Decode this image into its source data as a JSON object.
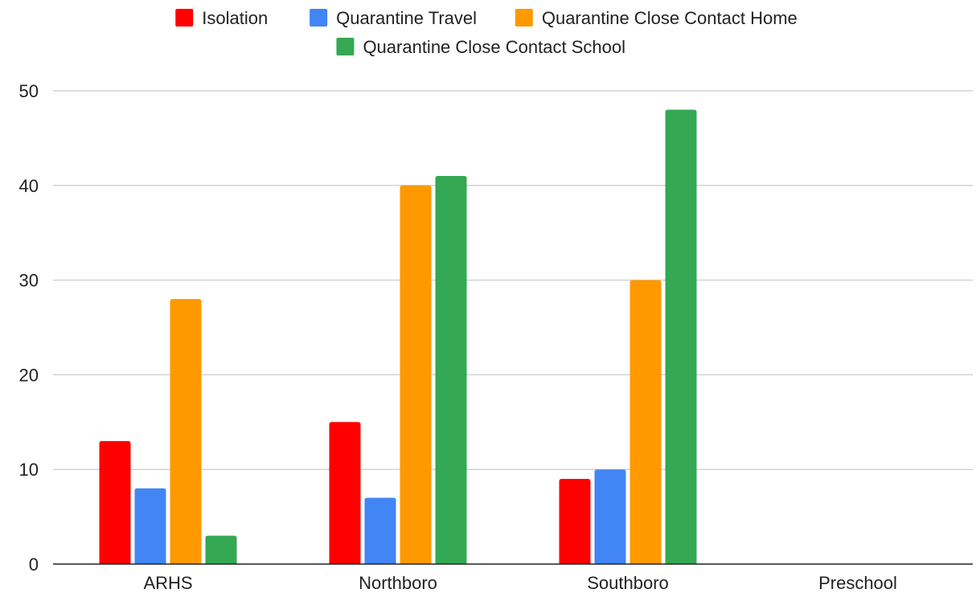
{
  "chart_data": {
    "type": "bar",
    "categories": [
      "ARHS",
      "Northboro",
      "Southboro",
      "Preschool"
    ],
    "series": [
      {
        "name": "Isolation",
        "color": "#ff0000",
        "values": [
          13,
          15,
          9,
          0
        ]
      },
      {
        "name": "Quarantine Travel",
        "color": "#4285f4",
        "values": [
          8,
          7,
          10,
          0
        ]
      },
      {
        "name": "Quarantine Close Contact Home",
        "color": "#ff9900",
        "values": [
          28,
          40,
          30,
          0
        ]
      },
      {
        "name": "Quarantine Close Contact School",
        "color": "#34a853",
        "values": [
          3,
          41,
          48,
          0
        ]
      }
    ],
    "title": "",
    "xlabel": "",
    "ylabel": "",
    "ylim": [
      0,
      50
    ],
    "yticks": [
      0,
      10,
      20,
      30,
      40,
      50
    ],
    "grid": true,
    "legend": "top-center"
  }
}
